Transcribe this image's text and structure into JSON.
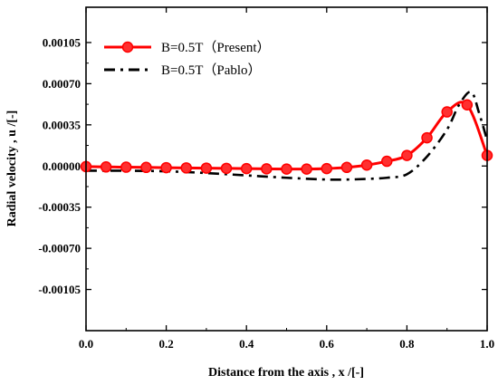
{
  "chart_data": {
    "type": "line",
    "xlabel": "Distance from the axis , x /[-]",
    "ylabel": "Radial velocity , u /[-]",
    "xlim": [
      0.0,
      1.0
    ],
    "ylim": [
      -0.0014,
      0.00135
    ],
    "x_ticks": [
      0.0,
      0.2,
      0.4,
      0.6,
      0.8,
      1.0
    ],
    "x_tick_labels": [
      "0.0",
      "0.2",
      "0.4",
      "0.6",
      "0.8",
      "1.0"
    ],
    "y_ticks": [
      0.00105,
      0.0007,
      0.00035,
      0.0,
      -0.00035,
      -0.0007,
      -0.00105
    ],
    "y_tick_labels": [
      "0.00105",
      "0.00070",
      "0.00035",
      "0.00000",
      "-0.00035",
      "-0.00070",
      "-0.00105"
    ],
    "legend_position": "top-left",
    "series": [
      {
        "name": "B=0.5T（Present）",
        "color": "#ff0000",
        "style": "solid-with-circle-markers",
        "x": [
          0.0,
          0.05,
          0.1,
          0.15,
          0.2,
          0.25,
          0.3,
          0.35,
          0.4,
          0.45,
          0.5,
          0.55,
          0.6,
          0.65,
          0.7,
          0.75,
          0.8,
          0.85,
          0.9,
          0.95,
          1.0
        ],
        "y": [
          -5e-06,
          -8e-06,
          -1e-05,
          -1.2e-05,
          -1.4e-05,
          -1.6e-05,
          -1.8e-05,
          -2e-05,
          -2.2e-05,
          -2.4e-05,
          -2.6e-05,
          -2.6e-05,
          -2.2e-05,
          -1.2e-05,
          8e-06,
          4e-05,
          9e-05,
          0.00024,
          0.00046,
          0.00052,
          9e-05
        ]
      },
      {
        "name": "B=0.5T（Pablo）",
        "color": "#000000",
        "style": "dash-dot",
        "x": [
          0.0,
          0.1,
          0.2,
          0.3,
          0.4,
          0.5,
          0.6,
          0.65,
          0.7,
          0.75,
          0.8,
          0.85,
          0.9,
          0.93,
          0.96,
          0.98,
          1.0
        ],
        "y": [
          -4e-05,
          -4e-05,
          -4.5e-05,
          -6e-05,
          -8e-05,
          -0.0001,
          -0.000115,
          -0.000115,
          -0.00011,
          -0.0001,
          -7e-05,
          8e-05,
          0.00031,
          0.00052,
          0.00063,
          0.00045,
          0.00022
        ]
      }
    ]
  }
}
